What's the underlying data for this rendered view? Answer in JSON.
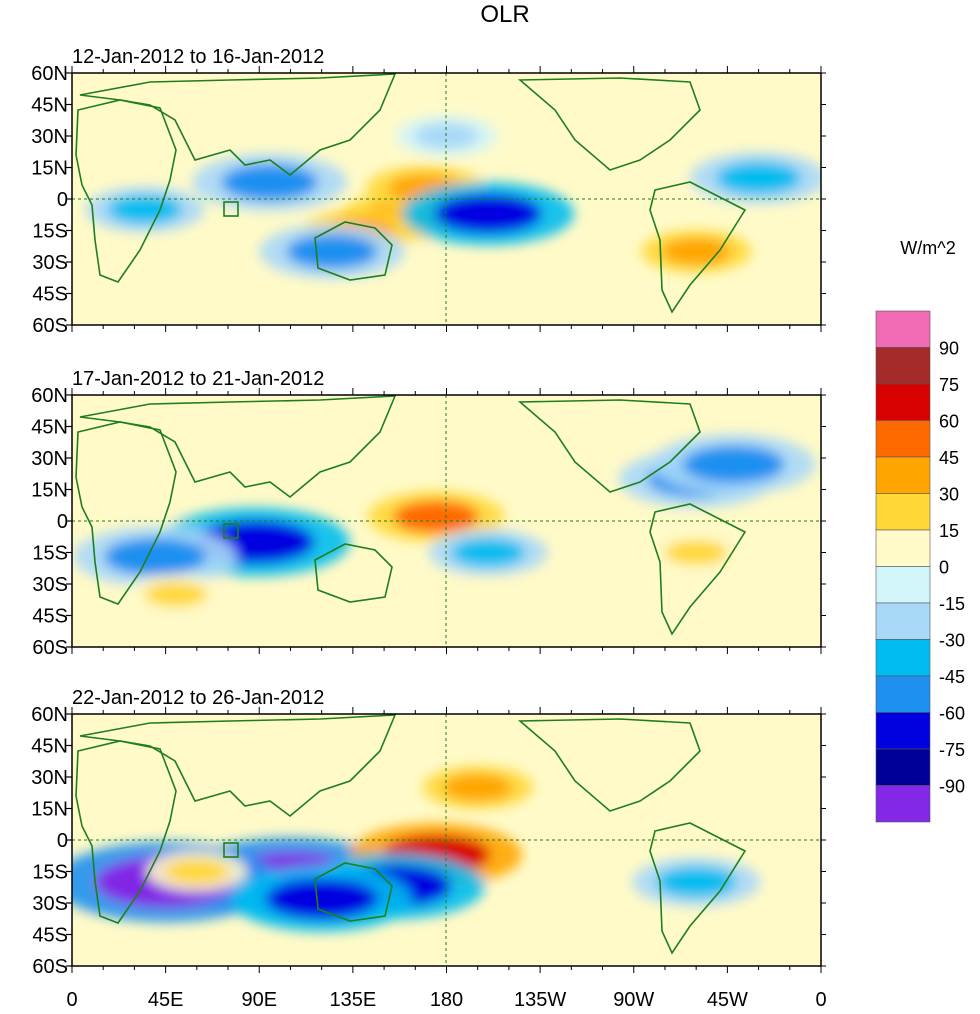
{
  "chart_data": {
    "type": "heatmap",
    "title": "OLR",
    "colorbar": {
      "units": "W/m^2",
      "bounds": [
        "90",
        "75",
        "60",
        "45",
        "30",
        "15",
        "0",
        "-15",
        "-30",
        "-45",
        "-60",
        "-75",
        "-90"
      ],
      "colors": [
        "#f06ab4",
        "#a52a2a",
        "#d80000",
        "#ff6a00",
        "#ffa500",
        "#ffd838",
        "#fffac8",
        "#d2f5fa",
        "#a8d8f8",
        "#00bcf0",
        "#1e90f0",
        "#0000e0",
        "#000096",
        "#8228e6"
      ]
    },
    "x_ticks": [
      "0",
      "45E",
      "90E",
      "135E",
      "180",
      "135W",
      "90W",
      "45W",
      "0"
    ],
    "y_ticks": [
      "60N",
      "45N",
      "30N",
      "15N",
      "0",
      "15S",
      "30S",
      "45S",
      "60S"
    ],
    "lon_range": [
      0,
      360
    ],
    "lat_range": [
      -60,
      60
    ],
    "panels": [
      {
        "label": "12-Jan-2012 to 16-Jan-2012",
        "anomalies": [
          {
            "lon": 160,
            "lat": -8,
            "value": 40
          },
          {
            "lon": 170,
            "lat": 5,
            "value": 35
          },
          {
            "lon": 138,
            "lat": -15,
            "value": 30
          },
          {
            "lon": 200,
            "lat": -7,
            "value": -65
          },
          {
            "lon": 125,
            "lat": -25,
            "value": -50
          },
          {
            "lon": 95,
            "lat": 8,
            "value": -55
          },
          {
            "lon": 35,
            "lat": -5,
            "value": -35
          },
          {
            "lon": 330,
            "lat": 10,
            "value": -45
          },
          {
            "lon": 300,
            "lat": -25,
            "value": 30
          },
          {
            "lon": 180,
            "lat": 30,
            "value": -25
          }
        ]
      },
      {
        "label": "17-Jan-2012 to 21-Jan-2012",
        "anomalies": [
          {
            "lon": 175,
            "lat": 2,
            "value": 45
          },
          {
            "lon": 88,
            "lat": -10,
            "value": -75
          },
          {
            "lon": 40,
            "lat": -17,
            "value": -60
          },
          {
            "lon": 300,
            "lat": 20,
            "value": -55
          },
          {
            "lon": 318,
            "lat": 27,
            "value": -60
          },
          {
            "lon": 50,
            "lat": -35,
            "value": 25
          },
          {
            "lon": 200,
            "lat": -15,
            "value": -35
          },
          {
            "lon": 300,
            "lat": -15,
            "value": 25
          }
        ]
      },
      {
        "label": "22-Jan-2012 to 26-Jan-2012",
        "anomalies": [
          {
            "lon": 105,
            "lat": -18,
            "value": -95
          },
          {
            "lon": 45,
            "lat": -20,
            "value": -95
          },
          {
            "lon": 175,
            "lat": -7,
            "value": 65
          },
          {
            "lon": 155,
            "lat": -22,
            "value": -70
          },
          {
            "lon": 120,
            "lat": -28,
            "value": -70
          },
          {
            "lon": 195,
            "lat": 25,
            "value": 30
          },
          {
            "lon": 300,
            "lat": -20,
            "value": -40
          },
          {
            "lon": 60,
            "lat": -15,
            "value": 25
          }
        ]
      }
    ]
  }
}
